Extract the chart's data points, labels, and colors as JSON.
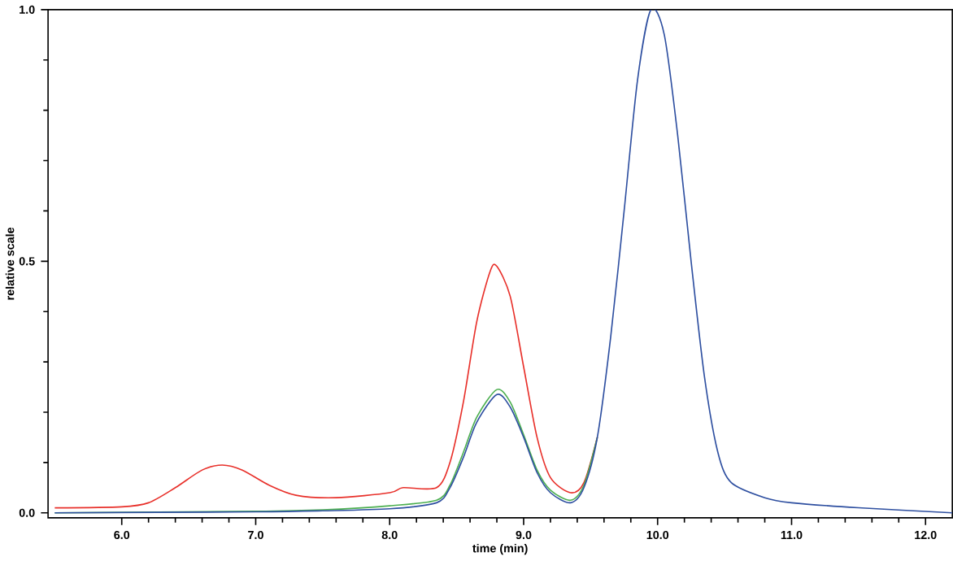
{
  "chart_data": {
    "type": "line",
    "xlabel": "time (min)",
    "ylabel": "relative scale",
    "xlim": [
      5.45,
      12.2
    ],
    "ylim": [
      -0.01,
      1.0
    ],
    "xticks": [
      {
        "value": 6,
        "label": "6.0"
      },
      {
        "value": 7,
        "label": "7.0"
      },
      {
        "value": 8,
        "label": "8.0"
      },
      {
        "value": 9,
        "label": "9.0"
      },
      {
        "value": 10,
        "label": "10.0"
      },
      {
        "value": 11,
        "label": "11.0"
      },
      {
        "value": 12,
        "label": "12.0"
      }
    ],
    "yticks": [
      {
        "value": 0,
        "label": "0.0"
      },
      {
        "value": 0.5,
        "label": "0.5"
      },
      {
        "value": 1,
        "label": "1.0"
      }
    ],
    "grid": false,
    "marker": "none",
    "line_style": "solid",
    "series": [
      {
        "color": "#e8302a",
        "x": [
          5.5,
          6.0,
          6.2,
          6.4,
          6.6,
          6.75,
          6.9,
          7.1,
          7.3,
          7.6,
          8.0,
          8.1,
          8.35,
          8.45,
          8.55,
          8.65,
          8.75,
          8.8,
          8.9,
          9.0,
          9.1,
          9.2,
          9.35,
          9.45,
          9.55
        ],
        "values": [
          0.01,
          0.012,
          0.02,
          0.05,
          0.085,
          0.095,
          0.085,
          0.055,
          0.035,
          0.03,
          0.04,
          0.05,
          0.05,
          0.1,
          0.22,
          0.38,
          0.48,
          0.49,
          0.43,
          0.29,
          0.15,
          0.07,
          0.04,
          0.06,
          0.15
        ]
      },
      {
        "color": "#4caf50",
        "x": [
          5.5,
          7.0,
          7.5,
          8.0,
          8.35,
          8.45,
          8.55,
          8.65,
          8.8,
          8.9,
          9.0,
          9.1,
          9.2,
          9.35,
          9.45,
          9.55
        ],
        "values": [
          0.0,
          0.003,
          0.006,
          0.014,
          0.025,
          0.055,
          0.12,
          0.19,
          0.245,
          0.22,
          0.155,
          0.085,
          0.045,
          0.025,
          0.055,
          0.15
        ]
      },
      {
        "color": "#2e4fa0",
        "x": [
          5.5,
          7.0,
          7.5,
          8.0,
          8.35,
          8.45,
          8.55,
          8.65,
          8.8,
          8.9,
          9.0,
          9.1,
          9.2,
          9.35,
          9.45,
          9.55,
          9.65,
          9.75,
          9.85,
          9.95,
          10.05,
          10.15,
          10.25,
          10.35,
          10.45,
          10.55,
          10.8,
          11.0,
          11.5,
          12.2
        ],
        "values": [
          0.0,
          0.002,
          0.004,
          0.008,
          0.02,
          0.05,
          0.11,
          0.18,
          0.235,
          0.21,
          0.15,
          0.08,
          0.04,
          0.02,
          0.05,
          0.15,
          0.35,
          0.6,
          0.86,
          1.0,
          0.95,
          0.75,
          0.5,
          0.27,
          0.12,
          0.06,
          0.03,
          0.02,
          0.01,
          0.0
        ]
      }
    ]
  }
}
